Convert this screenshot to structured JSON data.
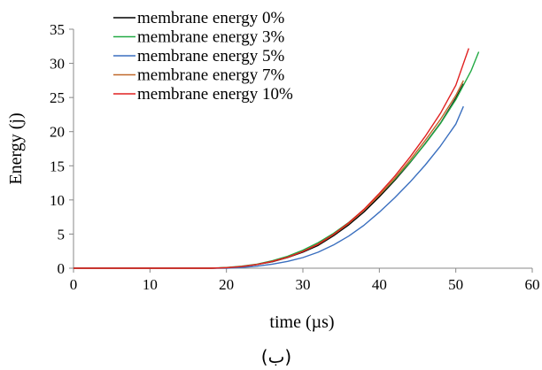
{
  "chart_data": {
    "type": "line",
    "xlabel": "time  (µs)",
    "ylabel": "Energy  (j)",
    "caption": "(ب)",
    "xlim": [
      0,
      60
    ],
    "ylim": [
      0,
      35
    ],
    "xticks": [
      0,
      10,
      20,
      30,
      40,
      50,
      60
    ],
    "yticks": [
      0,
      5,
      10,
      15,
      20,
      25,
      30,
      35
    ],
    "grid": false,
    "legend_position": "top-left",
    "series": [
      {
        "name": "membrane energy 0%",
        "color": "#000000",
        "x": [
          0,
          18,
          20,
          22,
          24,
          26,
          28,
          30,
          32,
          34,
          36,
          38,
          40,
          42,
          44,
          46,
          48,
          50,
          51
        ],
        "y": [
          0,
          0,
          0.08,
          0.25,
          0.55,
          0.95,
          1.55,
          2.35,
          3.35,
          4.75,
          6.35,
          8.25,
          10.45,
          12.85,
          15.45,
          18.25,
          21.25,
          24.9,
          27.0
        ]
      },
      {
        "name": "membrane energy 3%",
        "color": "#22aa44",
        "x": [
          0,
          18,
          20,
          22,
          24,
          26,
          28,
          30,
          32,
          34,
          36,
          38,
          40,
          42,
          44,
          46,
          48,
          50,
          52,
          53
        ],
        "y": [
          0,
          0,
          0.1,
          0.3,
          0.6,
          1.1,
          1.75,
          2.65,
          3.75,
          5.1,
          6.7,
          8.6,
          10.7,
          13.0,
          15.5,
          18.2,
          21.2,
          24.7,
          28.9,
          31.7
        ]
      },
      {
        "name": "membrane energy 5%",
        "color": "#3a6fbf",
        "x": [
          0,
          20,
          22,
          24,
          26,
          28,
          30,
          32,
          34,
          36,
          38,
          40,
          42,
          44,
          46,
          48,
          50,
          51
        ],
        "y": [
          0,
          0,
          0.1,
          0.3,
          0.6,
          1.0,
          1.55,
          2.35,
          3.4,
          4.7,
          6.3,
          8.2,
          10.3,
          12.6,
          15.1,
          17.9,
          21.1,
          23.7
        ]
      },
      {
        "name": "membrane energy 7%",
        "color": "#c0682a",
        "x": [
          0,
          18,
          20,
          22,
          24,
          26,
          28,
          30,
          32,
          34,
          36,
          38,
          40,
          42,
          44,
          46,
          48,
          50,
          51
        ],
        "y": [
          0,
          0,
          0.08,
          0.25,
          0.55,
          1.0,
          1.6,
          2.45,
          3.5,
          4.9,
          6.55,
          8.5,
          10.7,
          13.15,
          15.8,
          18.7,
          21.8,
          25.3,
          27.5
        ]
      },
      {
        "name": "membrane energy 10%",
        "color": "#e02020",
        "x": [
          0,
          18,
          20,
          22,
          24,
          26,
          28,
          30,
          32,
          34,
          36,
          38,
          40,
          42,
          44,
          46,
          48,
          50,
          51.7
        ],
        "y": [
          0,
          0,
          0.08,
          0.25,
          0.55,
          1.0,
          1.6,
          2.45,
          3.55,
          4.95,
          6.65,
          8.65,
          10.95,
          13.45,
          16.25,
          19.3,
          22.7,
          26.8,
          32.2
        ]
      }
    ]
  }
}
